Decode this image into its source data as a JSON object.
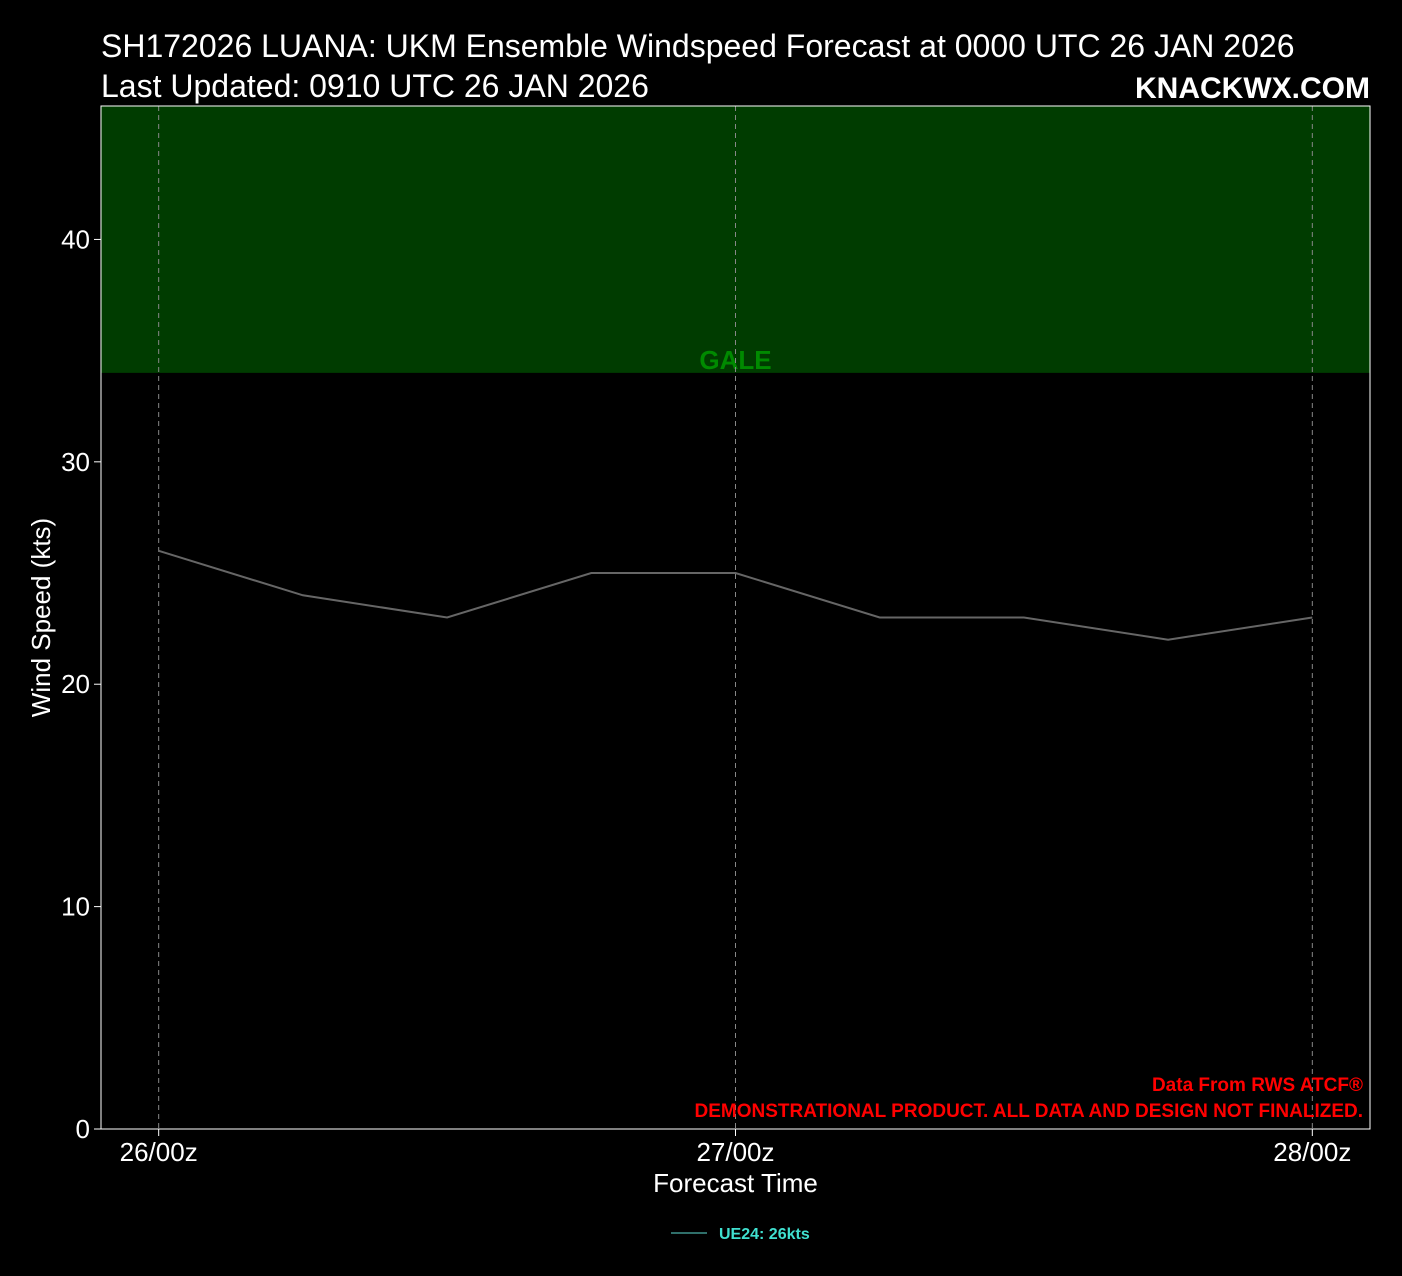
{
  "header": {
    "title_line1": "SH172026 LUANA: UKM Ensemble Windspeed Forecast at 0000 UTC 26 JAN 2026",
    "title_line2": "Last Updated: 0910 UTC 26 JAN 2026",
    "brand": "KNACKWX.COM"
  },
  "colors": {
    "background": "#000000",
    "gale_zone": "#003c00",
    "gale_label": "#008a00",
    "series_line": "#666666",
    "note": "#ff0000",
    "legend_text": "#40e0d0",
    "legend_line": "#2f6f6a",
    "grid": "#888888",
    "axes": "#ffffff"
  },
  "notes": {
    "source": "Data From RWS ATCF®",
    "disclaimer": "DEMONSTRATIONAL PRODUCT. ALL DATA AND DESIGN NOT FINALIZED."
  },
  "chart_data": {
    "type": "line",
    "xlabel": "Forecast Time",
    "ylabel": "Wind Speed (kts)",
    "ylim": [
      0,
      46
    ],
    "xlim_hours": [
      -2.4,
      50.4
    ],
    "x_ticks": [
      {
        "hour": 0,
        "label": "26/00z"
      },
      {
        "hour": 24,
        "label": "27/00z"
      },
      {
        "hour": 48,
        "label": "28/00z"
      }
    ],
    "y_ticks": [
      0,
      10,
      20,
      30,
      40
    ],
    "grid": "vertical dashed at x ticks",
    "zones": [
      {
        "name": "GALE",
        "from": 34,
        "to": 46
      }
    ],
    "series": [
      {
        "name": "UE24: 26kts",
        "x_hours": [
          0,
          6,
          12,
          18,
          24,
          30,
          36,
          42,
          48
        ],
        "values": [
          26,
          24,
          23,
          25,
          25,
          23,
          23,
          22,
          23
        ]
      }
    ],
    "legend_position": "bottom-center"
  }
}
